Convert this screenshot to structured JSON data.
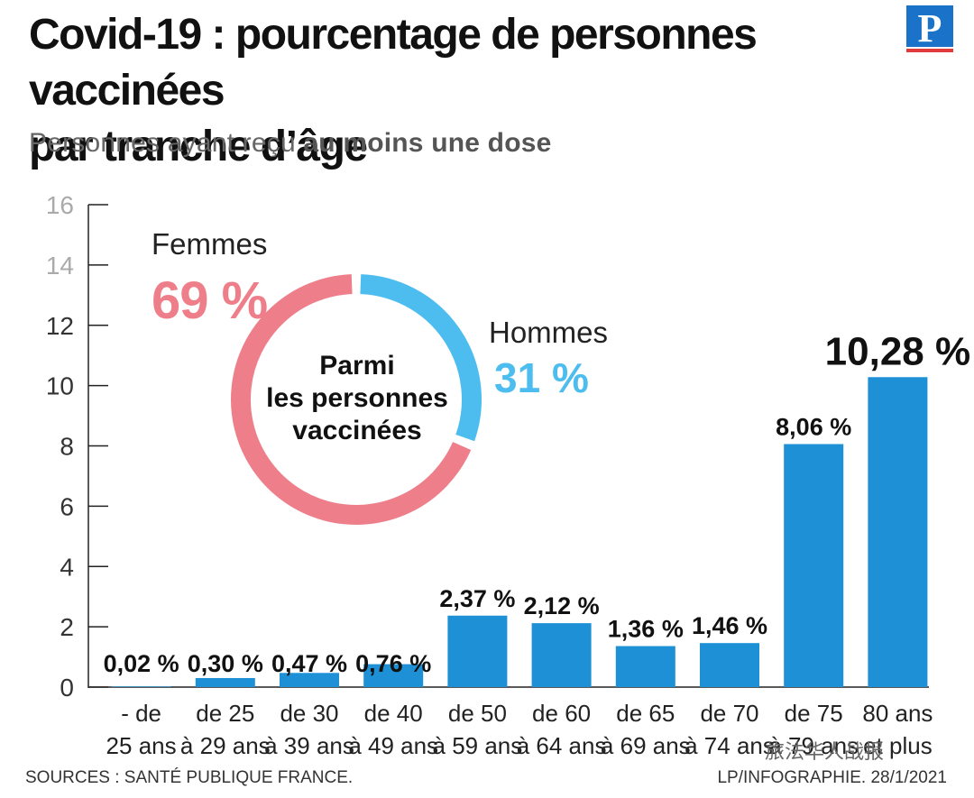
{
  "header": {
    "title_line1": "Covid-19 : pourcentage de personnes vaccinées",
    "title_line2": "par tranche d’âge",
    "subtitle_plain": "Personnes ayant reçu ",
    "subtitle_bold": "au moins une dose",
    "logo_letter": "P"
  },
  "donut": {
    "center_line1": "Parmi",
    "center_line2": "les personnes",
    "center_line3": "vaccinées",
    "femmes_label": "Femmes",
    "femmes_pct": "69 %",
    "femmes_value": 69,
    "hommes_label": "Hommes",
    "hommes_pct": "31 %",
    "hommes_value": 31,
    "femmes_color": "#ee7f8a",
    "hommes_color": "#4dbdf0"
  },
  "footer": {
    "source": "SOURCES : SANTÉ PUBLIQUE FRANCE.",
    "credit": "LP/INFOGRAPHIE.  28/1/2021",
    "watermark": "旅法华人战报"
  },
  "colors": {
    "bar": "#1e90d6",
    "axis": "#222222",
    "title": "#111111"
  },
  "chart_data": [
    {
      "type": "bar",
      "categories": [
        [
          "- de",
          "25 ans"
        ],
        [
          "de 25",
          "à 29 ans"
        ],
        [
          "de 30",
          "à 39 ans"
        ],
        [
          "de 40",
          "à 49 ans"
        ],
        [
          "de 50",
          "à 59 ans"
        ],
        [
          "de 60",
          "à 64 ans"
        ],
        [
          "de 65",
          "à 69 ans"
        ],
        [
          "de 70",
          "à 74 ans"
        ],
        [
          "de 75",
          "à 79 ans"
        ],
        [
          "80 ans",
          "et plus"
        ]
      ],
      "values": [
        0.02,
        0.3,
        0.47,
        0.76,
        2.37,
        2.12,
        1.36,
        1.46,
        8.06,
        10.28
      ],
      "data_labels": [
        "0,02 %",
        "0,30 %",
        "0,47 %",
        "0,76 %",
        "2,37 %",
        "2,12 %",
        "1,36 %",
        "1,46 %",
        "8,06 %",
        "10,28 %"
      ],
      "yticks": [
        0,
        2,
        4,
        6,
        8,
        10,
        12,
        14,
        16
      ],
      "ylim": [
        0,
        16
      ],
      "grid": false
    },
    {
      "type": "pie",
      "categories": [
        "Femmes",
        "Hommes"
      ],
      "values": [
        69,
        31
      ]
    }
  ]
}
